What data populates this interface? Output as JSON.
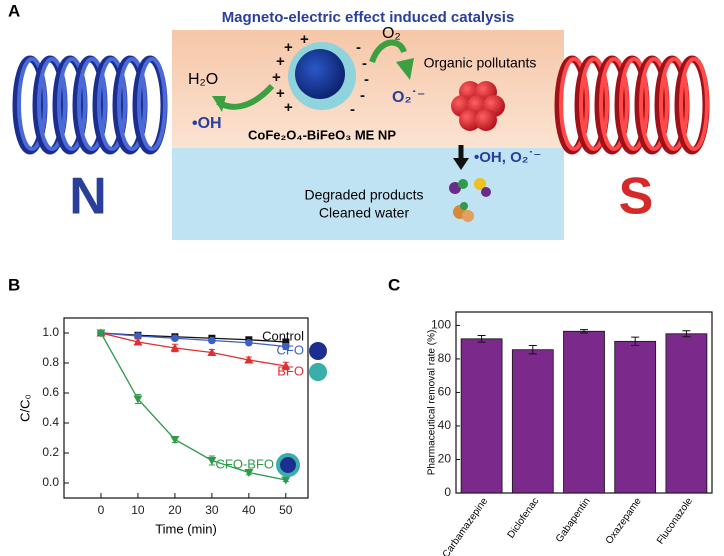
{
  "diagram": {
    "panel": "A",
    "title": "Magneto-electric effect induced catalysis",
    "water": "H₂O",
    "oxygen": "O₂",
    "superoxide": "O₂˙⁻",
    "hydroxyl": "•OH",
    "particle": "CoFe₂O₄-BiFeO₃ ME NP",
    "pollutants": "Organic pollutants",
    "radicals": "•OH, O₂˙⁻",
    "products": "Degraded products",
    "water_clean": "Cleaned water",
    "north": "N",
    "south": "S"
  },
  "chart_data": [
    {
      "type": "line",
      "panel": "B",
      "xlabel": "Time (min)",
      "ylabel": "C/C₀",
      "x": [
        0,
        10,
        20,
        30,
        40,
        50
      ],
      "xlim": [
        -10,
        56
      ],
      "ylim": [
        -0.1,
        1.1
      ],
      "xticks": [
        0,
        10,
        20,
        30,
        40,
        50
      ],
      "yticks": [
        {
          "value": 0,
          "label": "0.0"
        },
        {
          "value": 0.2,
          "label": "0.2"
        },
        {
          "value": 0.4,
          "label": "0.4"
        },
        {
          "value": 0.6,
          "label": "0.6"
        },
        {
          "value": 0.8,
          "label": "0.8"
        },
        {
          "value": 1,
          "label": "1.0"
        }
      ],
      "series": [
        {
          "name": "Control",
          "color": "#111111",
          "marker": "square",
          "values": [
            1.0,
            0.985,
            0.975,
            0.965,
            0.955,
            0.94
          ],
          "errors": [
            0.01,
            0.01,
            0.015,
            0.015,
            0.015,
            0.015
          ]
        },
        {
          "name": "CFO",
          "color": "#3a5fc8",
          "marker": "circle",
          "values": [
            1.0,
            0.98,
            0.965,
            0.95,
            0.935,
            0.91
          ],
          "errors": [
            0.01,
            0.015,
            0.015,
            0.015,
            0.015,
            0.02
          ]
        },
        {
          "name": "BFO",
          "color": "#e03030",
          "marker": "triangle",
          "values": [
            1.0,
            0.94,
            0.9,
            0.87,
            0.82,
            0.78
          ],
          "errors": [
            0.01,
            0.02,
            0.025,
            0.02,
            0.02,
            0.025
          ]
        },
        {
          "name": "CFO-BFO",
          "color": "#2f9a4a",
          "marker": "down",
          "values": [
            1.0,
            0.56,
            0.29,
            0.15,
            0.07,
            0.02
          ],
          "errors": [
            0.01,
            0.03,
            0.02,
            0.03,
            0.015,
            0.01
          ]
        }
      ]
    },
    {
      "type": "bar",
      "panel": "C",
      "ylabel": "Pharmaceutical removal rate (%)",
      "categories": [
        "Carbamazepine",
        "Diclofenac",
        "Gabapentin",
        "Oxazepame",
        "Fluconazole"
      ],
      "values": [
        92,
        85.5,
        96.5,
        90.5,
        95
      ],
      "errors": [
        2,
        2.5,
        1,
        2.5,
        1.8
      ],
      "color": "#7b2a8c",
      "ylim": [
        0,
        108
      ],
      "yticks": [
        0,
        20,
        40,
        60,
        80,
        100
      ]
    }
  ]
}
